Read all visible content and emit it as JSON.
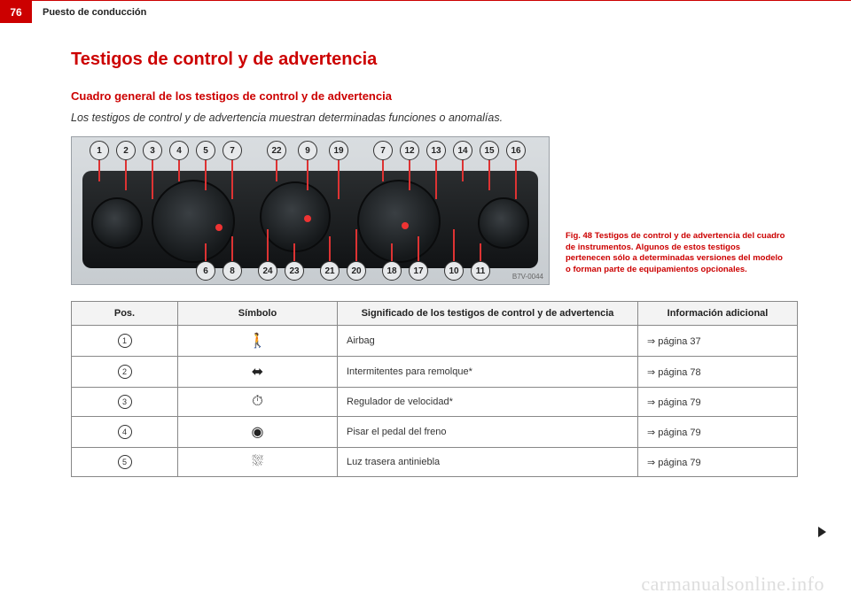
{
  "header": {
    "page_number": "76",
    "section_title": "Puesto de conducción"
  },
  "titles": {
    "main": "Testigos de control y de advertencia",
    "sub": "Cuadro general de los testigos de control y de advertencia",
    "lead": "Los testigos de control y de advertencia muestran determinadas funciones o anomalías."
  },
  "figure": {
    "caption": "Fig. 48   Testigos de control y de advertencia del cuadro de instrumentos. Algunos de estos testigos pertenecen sólo a determinadas versiones del modelo o forman parte de equipamientos opcionales.",
    "top_numbers": [
      "1",
      "2",
      "3",
      "4",
      "5",
      "7",
      "22",
      "9",
      "19",
      "7",
      "12",
      "13",
      "14",
      "15",
      "16"
    ],
    "bottom_numbers": [
      "6",
      "8",
      "24",
      "23",
      "21",
      "20",
      "18",
      "17",
      "10",
      "11"
    ],
    "image_code": "B7V-0044"
  },
  "table": {
    "headers": {
      "pos": "Pos.",
      "symbol": "Símbolo",
      "meaning": "Significado de los testigos de control y de advertencia",
      "info": "Información adicional"
    },
    "rows": [
      {
        "pos": "1",
        "symbol_name": "airbag-icon",
        "symbol_glyph": "🚶",
        "meaning": "Airbag",
        "info": "⇒ página 37"
      },
      {
        "pos": "2",
        "symbol_name": "trailer-indicator-icon",
        "symbol_glyph": "⬌",
        "meaning": "Intermitentes para remolque*",
        "info": "⇒ página 78"
      },
      {
        "pos": "3",
        "symbol_name": "cruise-control-icon",
        "symbol_glyph": "⏱",
        "meaning": "Regulador de velocidad*",
        "info": "⇒ página 79"
      },
      {
        "pos": "4",
        "symbol_name": "brake-pedal-icon",
        "symbol_glyph": "◉",
        "meaning": "Pisar el pedal del freno",
        "info": "⇒ página 79"
      },
      {
        "pos": "5",
        "symbol_name": "rear-fog-light-icon",
        "symbol_glyph": "⛆",
        "meaning": "Luz trasera antiniebla",
        "info": "⇒ página 79"
      }
    ]
  },
  "watermark": "carmanualsonline.info"
}
